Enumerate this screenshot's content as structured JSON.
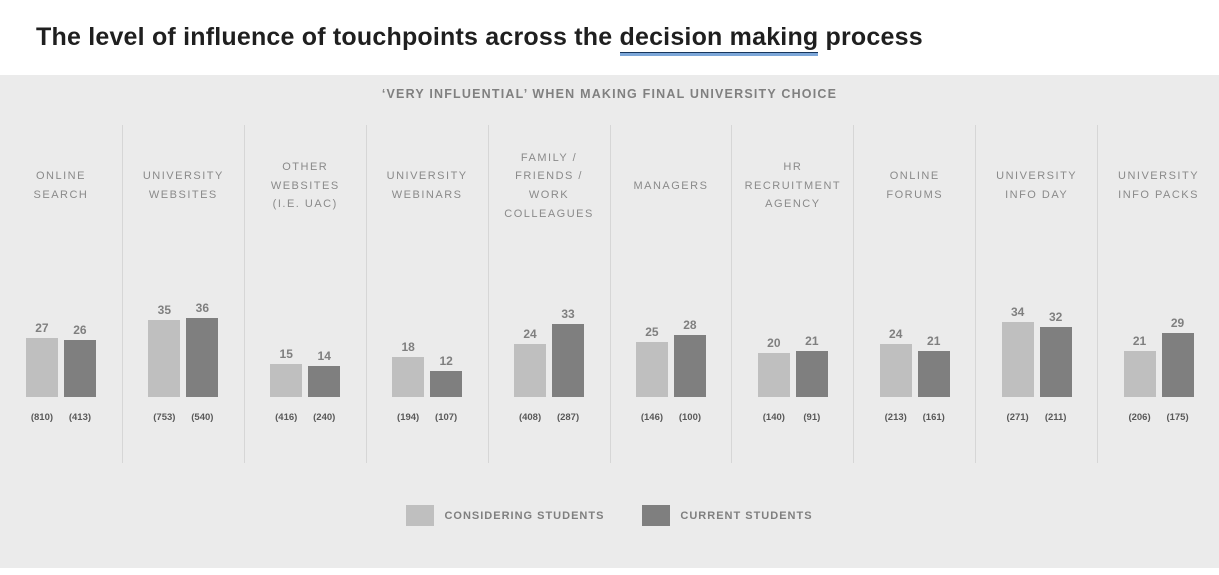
{
  "title": {
    "prefix": "The level of influence of touchpoints across the ",
    "underlined_phrase": "decision making",
    "suffix": " process"
  },
  "subtitle": "‘VERY INFLUENTIAL’ WHEN MAKING FINAL UNIVERSITY CHOICE",
  "legend": {
    "items": [
      {
        "label": "CONSIDERING STUDENTS",
        "color": "#bfbfbf"
      },
      {
        "label": "CURRENT STUDENTS",
        "color": "#7f7f7f"
      }
    ]
  },
  "colors": {
    "panel_background": "#ebebeb",
    "considering_bar": "#bfbfbf",
    "current_bar": "#7f7f7f",
    "category_text": "#8a8a8a",
    "value_text": "#7f7f7f",
    "sample_size_text": "#595959"
  },
  "chart_data": {
    "type": "bar",
    "title": "The level of influence of touchpoints across the decision making process",
    "subtitle": "‘VERY INFLUENTIAL’ WHEN MAKING FINAL UNIVERSITY CHOICE",
    "categories": [
      "ONLINE SEARCH",
      "UNIVERSITY WEBSITES",
      "OTHER WEBSITES (I.E. UAC)",
      "UNIVERSITY WEBINARS",
      "FAMILY / FRIENDS / WORK COLLEAGUES",
      "MANAGERS",
      "HR RECRUITMENT AGENCY",
      "ONLINE FORUMS",
      "UNIVERSITY INFO DAY",
      "UNIVERSITY INFO PACKS"
    ],
    "series": [
      {
        "name": "CONSIDERING STUDENTS",
        "values": [
          27,
          35,
          15,
          18,
          24,
          25,
          20,
          24,
          34,
          21
        ],
        "sample_sizes": [
          "(810)",
          "(753)",
          "(416)",
          "(194)",
          "(408)",
          "(146)",
          "(140)",
          "(213)",
          "(271)",
          "(206)"
        ]
      },
      {
        "name": "CURRENT STUDENTS",
        "values": [
          26,
          36,
          14,
          12,
          33,
          28,
          21,
          21,
          32,
          29
        ],
        "sample_sizes": [
          "(413)",
          "(540)",
          "(240)",
          "(107)",
          "(287)",
          "(100)",
          "(91)",
          "(161)",
          "(211)",
          "(175)"
        ]
      }
    ],
    "ylim": [
      0,
      40
    ],
    "value_labels": true,
    "grid": false,
    "legend_position": "bottom"
  }
}
